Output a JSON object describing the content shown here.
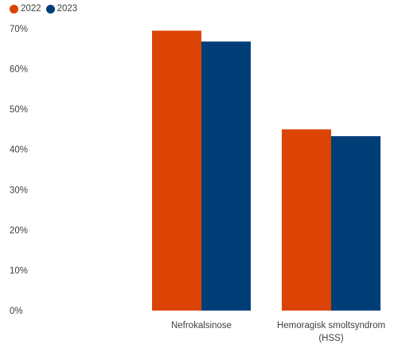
{
  "chart_data": {
    "type": "bar",
    "categories": [
      "Nefrokalsinose",
      "Hemoragisk smoltsyndrom (HSS)"
    ],
    "series": [
      {
        "name": "2022",
        "values": [
          69.5,
          45.0
        ],
        "color": "#dc4405"
      },
      {
        "name": "2023",
        "values": [
          66.8,
          43.3
        ],
        "color": "#003e78"
      }
    ],
    "ylim": [
      0,
      70
    ],
    "yticks": [
      0,
      10,
      20,
      30,
      40,
      50,
      60,
      70
    ],
    "ytick_labels": [
      "0%",
      "10%",
      "20%",
      "30%",
      "40%",
      "50%",
      "60%",
      "70%"
    ],
    "category_labels": [
      [
        "Nefrokalsinose"
      ],
      [
        "Hemoragisk smoltsyndrom",
        "(HSS)"
      ]
    ],
    "grid": false,
    "legend": "top-left"
  }
}
